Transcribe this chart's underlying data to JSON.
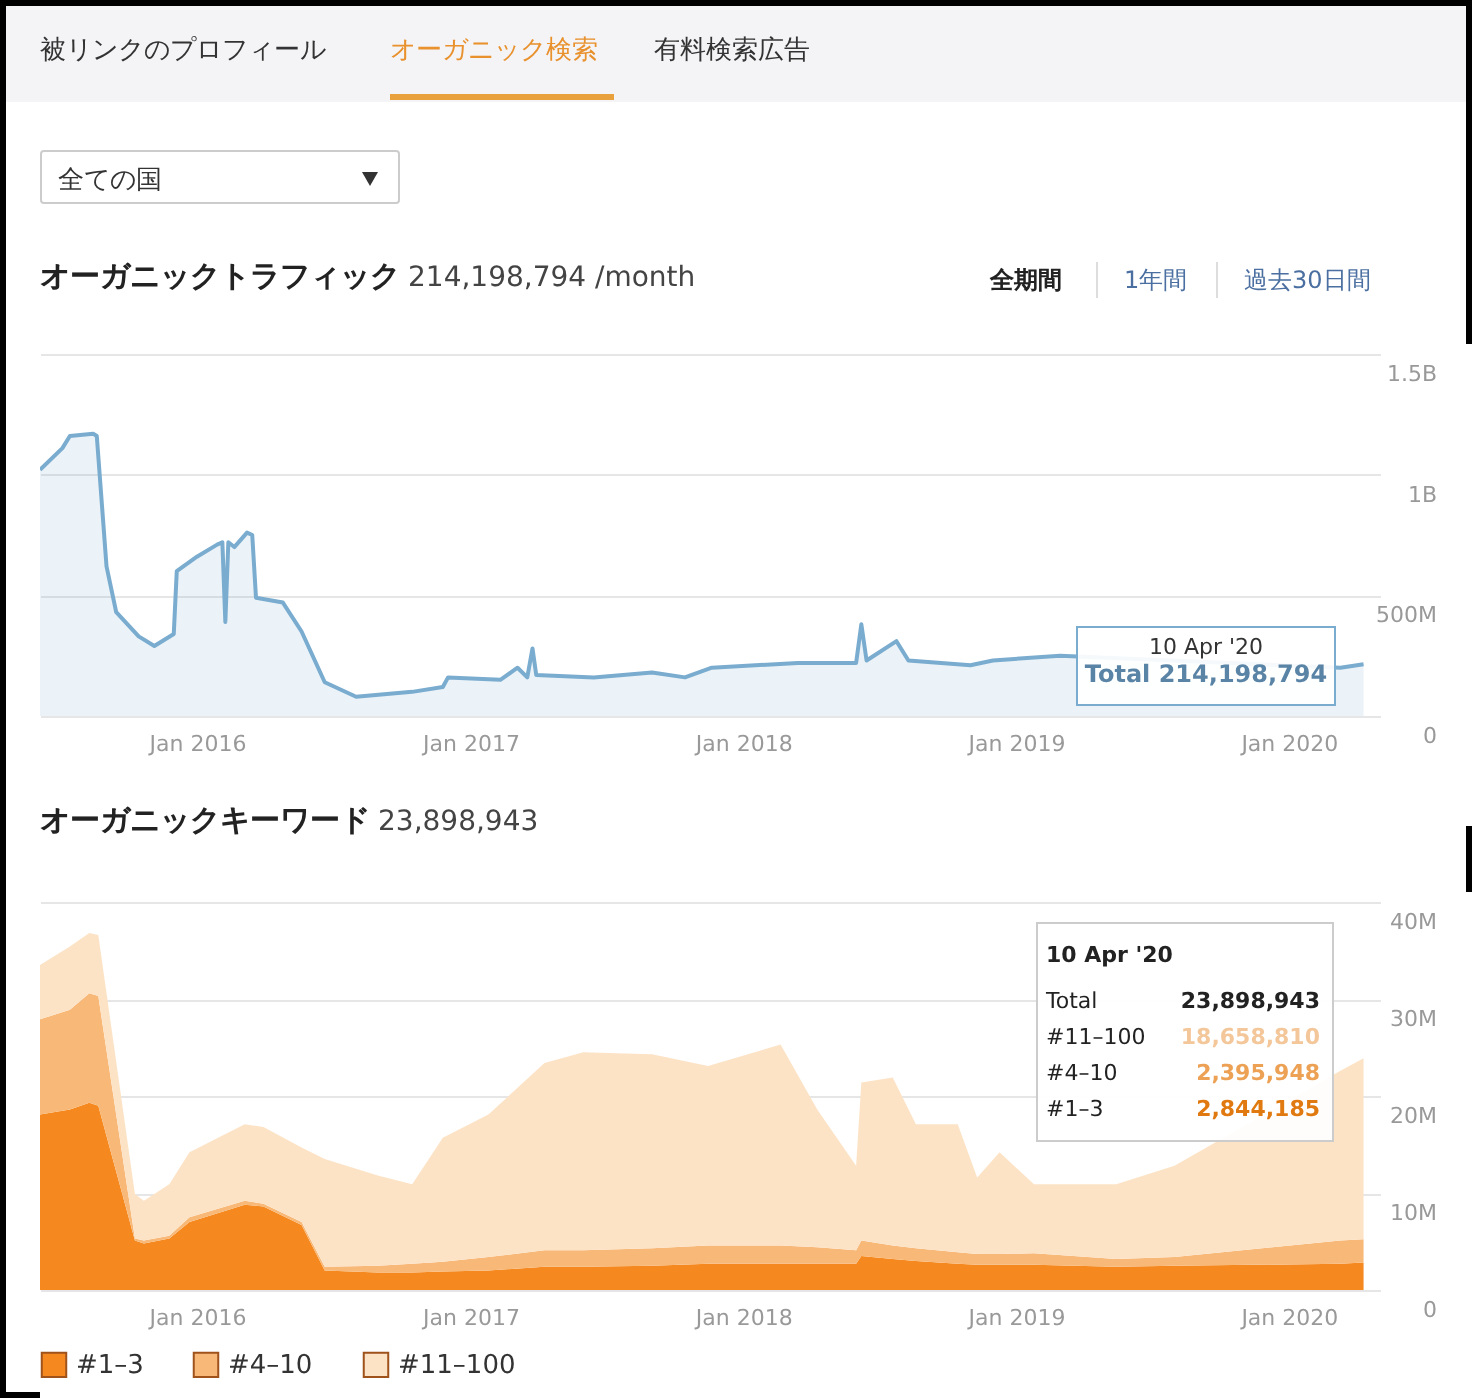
{
  "chart_data": [
    {
      "type": "other",
      "annotations": [
        "被リンクのプロフィール",
        "オーガニック検索",
        "有料検索広告",
        "全ての国",
        "全期間",
        "1年間",
        "過去30日間"
      ]
    },
    {
      "type": "area",
      "title": "オーガニックトラフィック",
      "subtitle": "214,198,794 /month",
      "color": "#7aaccf",
      "grid": "y",
      "x": [
        "2015-06-05",
        "2015-07-05",
        "2015-07-15",
        "2015-08-15",
        "2015-08-20",
        "2015-09-02",
        "2015-09-15",
        "2015-10-15",
        "2015-11-05",
        "2015-12-01",
        "2015-12-05",
        "2016-01-01",
        "2016-01-28",
        "2016-02-04",
        "2016-02-08",
        "2016-02-12",
        "2016-02-20",
        "2016-03-08",
        "2016-03-15",
        "2016-03-20",
        "2016-04-25",
        "2016-05-20",
        "2016-06-20",
        "2016-08-01",
        "2016-10-15",
        "2016-11-25",
        "2016-12-02",
        "2017-02-10",
        "2017-03-05",
        "2017-03-18",
        "2017-03-25",
        "2017-03-30",
        "2017-06-15",
        "2017-09-01",
        "2017-10-15",
        "2017-11-20",
        "2018-03-15",
        "2018-06-01",
        "2018-06-08",
        "2018-06-15",
        "2018-07-25",
        "2018-08-10",
        "2018-11-01",
        "2018-12-01",
        "2019-03-01",
        "2020-03-10",
        "2020-04-10"
      ],
      "values": [
        1020000000,
        1110000000,
        1160000000,
        1170000000,
        1160000000,
        620000000,
        430000000,
        330000000,
        290000000,
        340000000,
        600000000,
        660000000,
        710000000,
        720000000,
        390000000,
        720000000,
        700000000,
        760000000,
        750000000,
        490000000,
        470000000,
        350000000,
        140000000,
        80000000,
        100000000,
        120000000,
        160000000,
        150000000,
        200000000,
        160000000,
        280000000,
        170000000,
        160000000,
        180000000,
        160000000,
        200000000,
        220000000,
        220000000,
        380000000,
        230000000,
        310000000,
        230000000,
        210000000,
        230000000,
        250000000,
        200000000,
        214198794
      ],
      "xlim": [
        "2015-06-05",
        "2020-05-02"
      ],
      "xticks": [
        {
          "value": "2016-01-01",
          "label": "Jan 2016"
        },
        {
          "value": "2017-01-01",
          "label": "Jan 2017"
        },
        {
          "value": "2018-01-01",
          "label": "Jan 2018"
        },
        {
          "value": "2019-01-01",
          "label": "Jan 2019"
        },
        {
          "value": "2020-01-01",
          "label": "Jan 2020"
        }
      ],
      "ylim": [
        0,
        1500000000
      ],
      "yticks": [
        0,
        {
          "value": 500000000,
          "label": "500M"
        },
        {
          "value": 1000000000,
          "label": "1B"
        },
        {
          "value": 1500000000,
          "label": "1.5B"
        }
      ],
      "annotations": [
        "10 Apr '20",
        "Total 214,198,794"
      ]
    },
    {
      "type": "area",
      "stacked": true,
      "title": "オーガニックキーワード",
      "subtitle": "23,898,943",
      "grid": "y",
      "legend": "bottom",
      "x": [
        "2015-06-05",
        "2015-07-15",
        "2015-08-10",
        "2015-08-22",
        "2015-10-10",
        "2015-10-22",
        "2015-11-25",
        "2015-12-22",
        "2016-03-05",
        "2016-03-30",
        "2016-05-20",
        "2016-06-20",
        "2016-08-30",
        "2016-10-15",
        "2016-11-25",
        "2017-01-25",
        "2017-04-10",
        "2017-06-01",
        "2017-09-01",
        "2017-11-15",
        "2018-02-20",
        "2018-04-10",
        "2018-06-01",
        "2018-06-08",
        "2018-07-20",
        "2018-08-20",
        "2018-10-15",
        "2018-11-10",
        "2018-12-10",
        "2019-01-25",
        "2019-05-15",
        "2019-08-01",
        "2020-03-10",
        "2020-04-10"
      ],
      "series": [
        {
          "name": "#1–3",
          "color": "#f5891f",
          "values": [
            18.1,
            18.6,
            19.3,
            19.0,
            5.1,
            4.8,
            5.3,
            7.0,
            8.8,
            8.6,
            6.7,
            2.0,
            1.8,
            1.8,
            1.9,
            2.0,
            2.4,
            2.4,
            2.5,
            2.7,
            2.7,
            2.7,
            2.7,
            3.5,
            3.2,
            3.0,
            2.7,
            2.6,
            2.6,
            2.6,
            2.4,
            2.5,
            2.7,
            2.844185
          ]
        },
        {
          "name": "#4–10",
          "color": "#f8b878",
          "values": [
            9.8,
            10.3,
            11.3,
            11.3,
            0.2,
            0.3,
            0.3,
            0.5,
            0.4,
            0.3,
            0.3,
            0.4,
            0.7,
            0.9,
            1.0,
            1.4,
            1.7,
            1.7,
            1.8,
            1.9,
            1.9,
            1.7,
            1.4,
            1.6,
            1.4,
            1.3,
            1.2,
            1.1,
            1.1,
            1.2,
            0.8,
            0.9,
            2.4,
            2.395948
          ]
        },
        {
          "name": "#11–100",
          "color": "#fde3c6",
          "values": [
            5.6,
            6.5,
            6.2,
            6.3,
            4.6,
            4.1,
            5.3,
            6.7,
            7.9,
            7.9,
            7.7,
            11.1,
            9.3,
            8.2,
            12.8,
            14.7,
            19.3,
            20.4,
            20.0,
            18.5,
            20.7,
            14.2,
            8.7,
            16.3,
            17.3,
            12.8,
            13.2,
            7.9,
            10.5,
            7.1,
            7.7,
            9.4,
            17.5,
            18.65881
          ]
        }
      ],
      "xlim": [
        "2015-06-05",
        "2020-05-02"
      ],
      "xticks": [
        {
          "value": "2016-01-01",
          "label": "Jan 2016"
        },
        {
          "value": "2017-01-01",
          "label": "Jan 2017"
        },
        {
          "value": "2018-01-01",
          "label": "Jan 2018"
        },
        {
          "value": "2019-01-01",
          "label": "Jan 2019"
        },
        {
          "value": "2020-01-01",
          "label": "Jan 2020"
        }
      ],
      "ylim": [
        0,
        40
      ],
      "yticks": [
        {
          "value": 0,
          "label": "0"
        },
        {
          "value": 10,
          "label": "10M"
        },
        {
          "value": 20,
          "label": "20M"
        },
        {
          "value": 30,
          "label": "30M"
        },
        {
          "value": 40,
          "label": "40M"
        }
      ],
      "annotations": [
        "10 Apr '20",
        "Total",
        "23,898,943",
        "#11–100",
        "18,658,810",
        "#4–10",
        "2,395,948",
        "#1–3",
        "2,844,185"
      ]
    }
  ]
}
